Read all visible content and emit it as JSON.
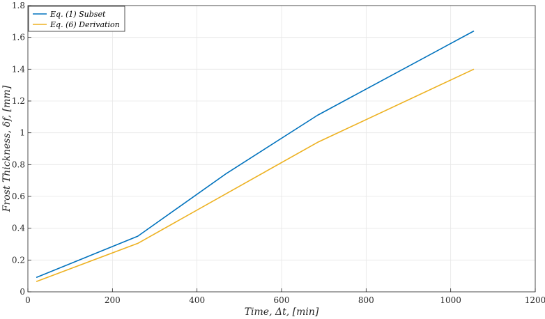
{
  "chart_data": {
    "type": "line",
    "xlabel": "Time, Δt, [min]",
    "ylabel": "Frost Thickness, δf, [mm]",
    "xlim": [
      0,
      1200
    ],
    "ylim": [
      0,
      1.8
    ],
    "xticks": [
      0,
      200,
      400,
      600,
      800,
      1000,
      1200
    ],
    "yticks": [
      0,
      0.2,
      0.4,
      0.6,
      0.8,
      1,
      1.2,
      1.4,
      1.6,
      1.8
    ],
    "xtick_labels": [
      "0",
      "200",
      "400",
      "600",
      "800",
      "1000",
      "1200"
    ],
    "ytick_labels": [
      "0",
      "0.2",
      "0.4",
      "0.6",
      "0.8",
      "1",
      "1.2",
      "1.4",
      "1.6",
      "1.8"
    ],
    "grid": true,
    "legend_position": "top-left",
    "series": [
      {
        "name": "Eq. (1) Subset",
        "color": "#0072BD",
        "x": [
          20,
          260,
          470,
          685,
          1055
        ],
        "y": [
          0.09,
          0.35,
          0.745,
          1.11,
          1.64
        ]
      },
      {
        "name": "Eq. (6) Derivation",
        "color": "#EDB120",
        "x": [
          20,
          260,
          685,
          1055
        ],
        "y": [
          0.065,
          0.305,
          0.94,
          1.4
        ]
      }
    ]
  }
}
